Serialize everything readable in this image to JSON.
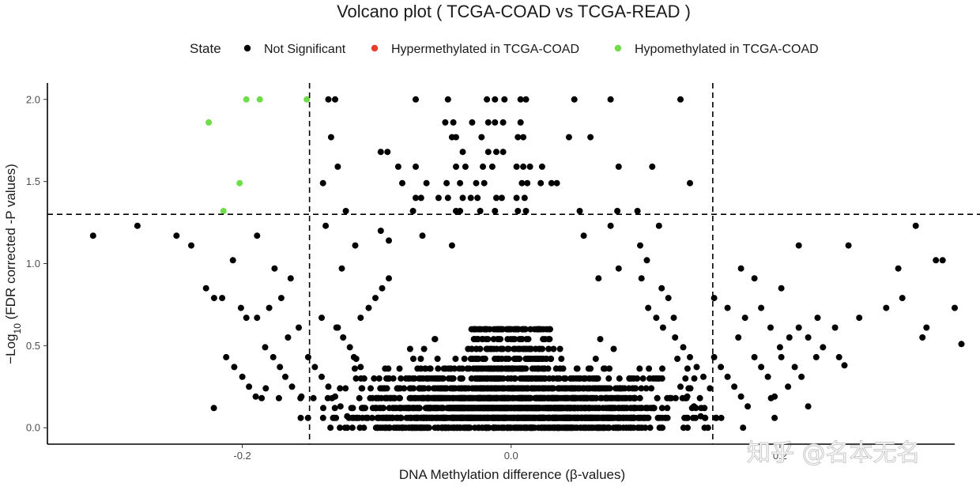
{
  "chart_data": {
    "type": "scatter",
    "title": "Volcano plot ( TCGA-COAD vs TCGA-READ )",
    "xlabel": "DNA Methylation difference (β-values)",
    "ylabel_prefix": "−Log",
    "ylabel_subscript": "10",
    "ylabel_suffix": " (FDR corrected -P values)",
    "xlim": [
      -0.345,
      0.33
    ],
    "ylim": [
      -0.1,
      2.1
    ],
    "x_ticks": [
      -0.2,
      0.0,
      0.2
    ],
    "x_tick_labels": [
      "-0.2",
      "0.0",
      "0.2"
    ],
    "y_ticks": [
      0.0,
      0.5,
      1.0,
      1.5,
      2.0
    ],
    "y_tick_labels": [
      "0.0",
      "0.5",
      "1.0",
      "1.5",
      "2.0"
    ],
    "thresholds": {
      "x": [
        -0.15,
        0.15
      ],
      "y": 1.3
    },
    "grid": false,
    "legend": {
      "title": "State",
      "position": "top",
      "entries": [
        {
          "label": "Not Significant",
          "color": "#000000"
        },
        {
          "label": "Hypermethylated in TCGA-COAD",
          "color": "#e5412a"
        },
        {
          "label": "Hypomethylated in TCGA-COAD",
          "color": "#6fdc4a"
        }
      ]
    },
    "series": [
      {
        "name": "Hypomethylated in TCGA-COAD",
        "color": "#6fdc4a",
        "points": [
          [
            -0.225,
            1.86
          ],
          [
            -0.197,
            2.0
          ],
          [
            -0.187,
            2.0
          ],
          [
            -0.152,
            2.0
          ],
          [
            -0.202,
            1.49
          ],
          [
            -0.214,
            1.32
          ]
        ]
      },
      {
        "name": "Hypermethylated in TCGA-COAD",
        "color": "#e5412a",
        "points": []
      },
      {
        "name": "Not Significant",
        "color": "#000000",
        "points": [
          [
            -0.136,
            2.0
          ],
          [
            -0.131,
            2.0
          ],
          [
            -0.071,
            2.0
          ],
          [
            -0.047,
            2.0
          ],
          [
            -0.018,
            2.0
          ],
          [
            -0.012,
            2.0
          ],
          [
            -0.005,
            2.0
          ],
          [
            0.007,
            2.0
          ],
          [
            0.011,
            2.0
          ],
          [
            0.047,
            2.0
          ],
          [
            0.074,
            2.0
          ],
          [
            0.126,
            2.0
          ],
          [
            -0.049,
            1.86
          ],
          [
            -0.043,
            1.86
          ],
          [
            -0.029,
            1.86
          ],
          [
            -0.017,
            1.86
          ],
          [
            -0.012,
            1.86
          ],
          [
            -0.006,
            1.86
          ],
          [
            0.007,
            1.86
          ],
          [
            -0.134,
            1.77
          ],
          [
            -0.044,
            1.77
          ],
          [
            -0.041,
            1.77
          ],
          [
            -0.022,
            1.77
          ],
          [
            0.005,
            1.77
          ],
          [
            0.009,
            1.77
          ],
          [
            0.043,
            1.77
          ],
          [
            0.059,
            1.77
          ],
          [
            -0.097,
            1.68
          ],
          [
            -0.092,
            1.68
          ],
          [
            -0.036,
            1.68
          ],
          [
            -0.017,
            1.68
          ],
          [
            -0.011,
            1.68
          ],
          [
            -0.006,
            1.68
          ],
          [
            -0.129,
            1.59
          ],
          [
            -0.084,
            1.59
          ],
          [
            -0.071,
            1.59
          ],
          [
            -0.041,
            1.59
          ],
          [
            -0.034,
            1.59
          ],
          [
            -0.021,
            1.59
          ],
          [
            -0.014,
            1.59
          ],
          [
            0.004,
            1.59
          ],
          [
            0.009,
            1.59
          ],
          [
            0.014,
            1.59
          ],
          [
            0.023,
            1.59
          ],
          [
            0.08,
            1.59
          ],
          [
            0.105,
            1.59
          ],
          [
            -0.14,
            1.49
          ],
          [
            -0.081,
            1.49
          ],
          [
            -0.063,
            1.49
          ],
          [
            -0.048,
            1.49
          ],
          [
            -0.038,
            1.49
          ],
          [
            -0.026,
            1.49
          ],
          [
            -0.02,
            1.49
          ],
          [
            0.008,
            1.49
          ],
          [
            0.012,
            1.49
          ],
          [
            0.022,
            1.49
          ],
          [
            0.03,
            1.49
          ],
          [
            0.034,
            1.49
          ],
          [
            0.133,
            1.49
          ],
          [
            -0.071,
            1.4
          ],
          [
            -0.067,
            1.4
          ],
          [
            -0.054,
            1.4
          ],
          [
            -0.047,
            1.4
          ],
          [
            -0.036,
            1.4
          ],
          [
            -0.03,
            1.4
          ],
          [
            -0.025,
            1.4
          ],
          [
            -0.011,
            1.4
          ],
          [
            -0.007,
            1.4
          ],
          [
            0.004,
            1.4
          ],
          [
            0.01,
            1.4
          ],
          [
            -0.123,
            1.32
          ],
          [
            -0.073,
            1.32
          ],
          [
            -0.041,
            1.32
          ],
          [
            -0.038,
            1.32
          ],
          [
            -0.023,
            1.32
          ],
          [
            -0.012,
            1.32
          ],
          [
            0.005,
            1.32
          ],
          [
            0.011,
            1.32
          ],
          [
            0.051,
            1.32
          ],
          [
            0.079,
            1.32
          ],
          [
            0.094,
            1.32
          ],
          [
            -0.311,
            1.17
          ],
          [
            -0.278,
            1.23
          ],
          [
            -0.249,
            1.17
          ],
          [
            -0.238,
            1.11
          ],
          [
            -0.207,
            1.02
          ],
          [
            -0.189,
            1.17
          ],
          [
            -0.138,
            1.23
          ],
          [
            -0.116,
            1.11
          ],
          [
            -0.097,
            1.2
          ],
          [
            -0.091,
            1.14
          ],
          [
            -0.066,
            1.17
          ],
          [
            -0.044,
            1.11
          ],
          [
            0.054,
            1.17
          ],
          [
            0.074,
            1.23
          ],
          [
            0.096,
            1.11
          ],
          [
            0.11,
            1.23
          ],
          [
            0.214,
            1.11
          ],
          [
            0.251,
            1.11
          ],
          [
            0.301,
            1.23
          ],
          [
            0.321,
            1.02
          ],
          [
            -0.176,
            0.97
          ],
          [
            -0.164,
            0.91
          ],
          [
            -0.126,
            0.97
          ],
          [
            -0.091,
            0.91
          ],
          [
            0.065,
            0.91
          ],
          [
            0.08,
            0.97
          ],
          [
            0.097,
            0.91
          ],
          [
            0.101,
            1.02
          ],
          [
            0.171,
            0.97
          ],
          [
            0.181,
            0.91
          ],
          [
            0.201,
            0.85
          ],
          [
            0.288,
            0.97
          ],
          [
            0.279,
            0.73
          ],
          [
            0.291,
            0.79
          ],
          [
            0.306,
            0.55
          ],
          [
            0.309,
            0.61
          ],
          [
            0.316,
            1.02
          ],
          [
            0.33,
            0.73
          ],
          [
            0.335,
            0.51
          ],
          [
            -0.227,
            0.85
          ],
          [
            -0.221,
            0.79
          ],
          [
            -0.215,
            0.79
          ],
          [
            -0.201,
            0.73
          ],
          [
            -0.197,
            0.67
          ],
          [
            -0.189,
            0.67
          ],
          [
            -0.18,
            0.73
          ],
          [
            -0.171,
            0.79
          ],
          [
            -0.166,
            0.55
          ],
          [
            -0.158,
            0.61
          ],
          [
            -0.141,
            0.67
          ],
          [
            -0.129,
            0.61
          ],
          [
            0.151,
            0.79
          ],
          [
            0.161,
            0.73
          ],
          [
            0.169,
            0.55
          ],
          [
            0.174,
            0.67
          ],
          [
            0.186,
            0.73
          ],
          [
            0.193,
            0.61
          ],
          [
            0.2,
            0.49
          ],
          [
            0.207,
            0.55
          ],
          [
            0.214,
            0.61
          ],
          [
            0.221,
            0.55
          ],
          [
            0.228,
            0.67
          ],
          [
            0.232,
            0.49
          ],
          [
            0.241,
            0.61
          ],
          [
            0.244,
            0.43
          ],
          [
            0.248,
            0.38
          ],
          [
            0.259,
            0.67
          ],
          [
            -0.212,
            0.43
          ],
          [
            -0.206,
            0.37
          ],
          [
            -0.2,
            0.31
          ],
          [
            -0.195,
            0.25
          ],
          [
            -0.19,
            0.19
          ],
          [
            -0.183,
            0.49
          ],
          [
            -0.177,
            0.43
          ],
          [
            -0.172,
            0.37
          ],
          [
            -0.168,
            0.31
          ],
          [
            -0.163,
            0.25
          ],
          [
            -0.156,
            0.19
          ],
          [
            -0.151,
            0.43
          ],
          [
            -0.146,
            0.37
          ],
          [
            -0.141,
            0.31
          ],
          [
            -0.136,
            0.25
          ],
          [
            -0.131,
            0.19
          ],
          [
            -0.127,
            0.13
          ],
          [
            -0.122,
            0.07
          ],
          [
            -0.117,
            0.43
          ],
          [
            -0.112,
            0.37
          ],
          [
            0.151,
            0.43
          ],
          [
            0.156,
            0.37
          ],
          [
            0.161,
            0.31
          ],
          [
            0.166,
            0.25
          ],
          [
            0.171,
            0.19
          ],
          [
            0.176,
            0.13
          ],
          [
            0.181,
            0.43
          ],
          [
            0.186,
            0.37
          ],
          [
            0.191,
            0.31
          ],
          [
            0.196,
            0.19
          ],
          [
            0.201,
            0.43
          ],
          [
            0.206,
            0.25
          ],
          [
            0.211,
            0.37
          ],
          [
            0.216,
            0.31
          ],
          [
            0.221,
            0.13
          ],
          [
            0.227,
            0.43
          ],
          [
            0.122,
            0.55
          ],
          [
            0.128,
            0.49
          ],
          [
            0.133,
            0.43
          ],
          [
            0.138,
            0.37
          ],
          [
            0.143,
            0.31
          ],
          [
            0.126,
            0.25
          ],
          [
            0.131,
            0.19
          ],
          [
            0.136,
            0.13
          ],
          [
            0.141,
            0.07
          ],
          [
            0.113,
            0.61
          ],
          [
            0.108,
            0.67
          ],
          [
            0.102,
            0.73
          ],
          [
            -0.112,
            0.67
          ],
          [
            -0.106,
            0.73
          ],
          [
            -0.101,
            0.79
          ],
          [
            -0.096,
            0.85
          ],
          [
            -0.125,
            0.55
          ],
          [
            -0.12,
            0.49
          ],
          [
            -0.13,
            0.61
          ],
          [
            0.117,
            0.79
          ],
          [
            0.112,
            0.85
          ],
          [
            0.121,
            0.67
          ]
        ],
        "dense_cloud": {
          "description": "dense band of non-significant probes centred at 0",
          "count": 2200,
          "x_spread": 0.055,
          "y_max": 0.6
        }
      }
    ]
  },
  "watermark": "知乎 @名本无名"
}
